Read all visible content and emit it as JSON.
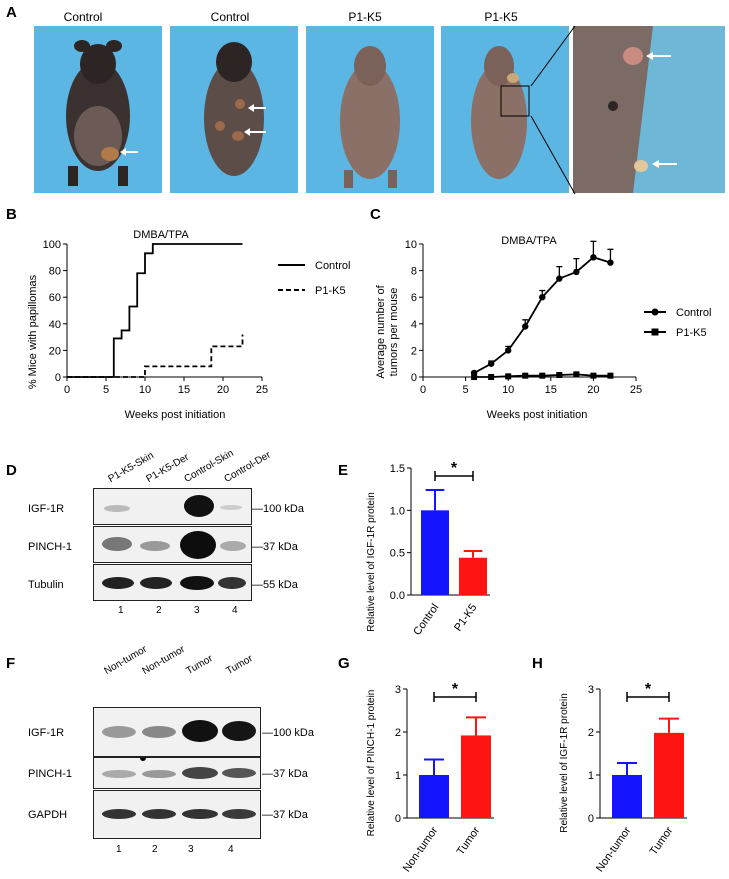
{
  "panels": {
    "A": {
      "letter": "A",
      "labels": [
        "Control",
        "Control",
        "P1-K5",
        "P1-K5"
      ]
    },
    "B": {
      "letter": "B",
      "title": "DMBA/TPA",
      "ylabel": "% Mice with papillomas",
      "xlabel": "Weeks post initiation",
      "legend": [
        "Control",
        "P1-K5"
      ],
      "xticks": [
        "0",
        "5",
        "10",
        "15",
        "20",
        "25"
      ],
      "yticks": [
        "0",
        "20",
        "40",
        "60",
        "80",
        "100"
      ]
    },
    "C": {
      "letter": "C",
      "title": "DMBA/TPA",
      "ylabel1": "Average number of",
      "ylabel2": "tumors per mouse",
      "xlabel": "Weeks post initiation",
      "legend": [
        "Control",
        "P1-K5"
      ],
      "xticks": [
        "0",
        "5",
        "10",
        "15",
        "20",
        "25"
      ],
      "yticks": [
        "0",
        "2",
        "4",
        "6",
        "8",
        "10"
      ]
    },
    "D": {
      "letter": "D",
      "lanes": [
        "P1-K5-Skin",
        "P1-K5-Der",
        "Control-Skin",
        "Control-Der"
      ],
      "rows": [
        "IGF-1R",
        "PINCH-1",
        "Tubulin"
      ],
      "kda": [
        "100 kDa",
        "37 kDa",
        "55 kDa"
      ],
      "numbers": [
        "1",
        "2",
        "3",
        "4"
      ]
    },
    "E": {
      "letter": "E",
      "ylabel": "Relative level of IGF-1R protein",
      "categories": [
        "Control",
        "P1-K5"
      ],
      "yticks": [
        "0.0",
        "0.5",
        "1.0",
        "1.5"
      ],
      "sig": "*"
    },
    "F": {
      "letter": "F",
      "lanes": [
        "Non-tumor",
        "Non-tumor",
        "Tumor",
        "Tumor"
      ],
      "rows": [
        "IGF-1R",
        "PINCH-1",
        "GAPDH"
      ],
      "kda": [
        "100 kDa",
        "37 kDa",
        "37 kDa"
      ],
      "numbers": [
        "1",
        "2",
        "3",
        "4"
      ]
    },
    "G": {
      "letter": "G",
      "ylabel": "Relative level of PINCH-1 protein",
      "categories": [
        "Non-tumor",
        "Tumor"
      ],
      "yticks": [
        "0",
        "1",
        "2",
        "3"
      ],
      "sig": "*"
    },
    "H": {
      "letter": "H",
      "ylabel": "Relative level of IGF-1R protein",
      "categories": [
        "Non-tumor",
        "Tumor"
      ],
      "yticks": [
        "0",
        "1",
        "2",
        "3"
      ],
      "sig": "*"
    }
  },
  "colors": {
    "blue": "#1414ff",
    "red": "#ff1414",
    "skin_bg": "#5bb6e3"
  },
  "chart_data": [
    {
      "id": "B",
      "type": "line",
      "title": "DMBA/TPA",
      "xlabel": "Weeks post initiation",
      "ylabel": "% Mice with papillomas",
      "xlim": [
        0,
        25
      ],
      "ylim": [
        0,
        100
      ],
      "series": [
        {
          "name": "Control",
          "style": "solid",
          "x": [
            0,
            6,
            6,
            7,
            7,
            8,
            8,
            9,
            9,
            10,
            10,
            11,
            11,
            22.5
          ],
          "y": [
            0,
            0,
            29,
            29,
            35,
            35,
            53,
            53,
            78,
            78,
            93,
            93,
            100,
            100
          ]
        },
        {
          "name": "P1-K5",
          "style": "dashed",
          "x": [
            0,
            10,
            10,
            18.5,
            18.5,
            22.5,
            22.5
          ],
          "y": [
            0,
            0,
            8,
            8,
            23,
            23,
            32
          ]
        }
      ]
    },
    {
      "id": "C",
      "type": "line",
      "title": "DMBA/TPA",
      "xlabel": "Weeks post initiation",
      "ylabel": "Average number of tumors per mouse",
      "xlim": [
        0,
        25
      ],
      "ylim": [
        0,
        10
      ],
      "series": [
        {
          "name": "Control",
          "marker": "circle",
          "x": [
            6,
            8,
            10,
            12,
            14,
            16,
            18,
            20,
            22
          ],
          "y": [
            0.3,
            1.0,
            2.0,
            3.8,
            6.0,
            7.4,
            7.9,
            9.0,
            8.6
          ],
          "err": [
            0.1,
            0.2,
            0.3,
            0.5,
            0.5,
            0.9,
            1.0,
            1.2,
            1.0
          ]
        },
        {
          "name": "P1-K5",
          "marker": "square",
          "x": [
            6,
            8,
            10,
            12,
            14,
            16,
            18,
            20,
            22
          ],
          "y": [
            0.0,
            0.0,
            0.05,
            0.1,
            0.1,
            0.15,
            0.2,
            0.1,
            0.1
          ],
          "err": [
            0,
            0,
            0,
            0.05,
            0.05,
            0.05,
            0.1,
            0.05,
            0.05
          ]
        }
      ]
    },
    {
      "id": "E",
      "type": "bar",
      "ylabel": "Relative level of IGF-1R protein",
      "categories": [
        "Control",
        "P1-K5"
      ],
      "values": [
        1.0,
        0.44
      ],
      "err": [
        0.24,
        0.08
      ],
      "ylim": [
        0,
        1.5
      ]
    },
    {
      "id": "G",
      "type": "bar",
      "ylabel": "Relative level of PINCH-1 protein",
      "categories": [
        "Non-tumor",
        "Tumor"
      ],
      "values": [
        1.0,
        1.92
      ],
      "err": [
        0.36,
        0.42
      ],
      "ylim": [
        0,
        3
      ]
    },
    {
      "id": "H",
      "type": "bar",
      "ylabel": "Relative level of IGF-1R protein",
      "categories": [
        "Non-tumor",
        "Tumor"
      ],
      "values": [
        1.0,
        1.98
      ],
      "err": [
        0.28,
        0.33
      ],
      "ylim": [
        0,
        3
      ]
    }
  ]
}
